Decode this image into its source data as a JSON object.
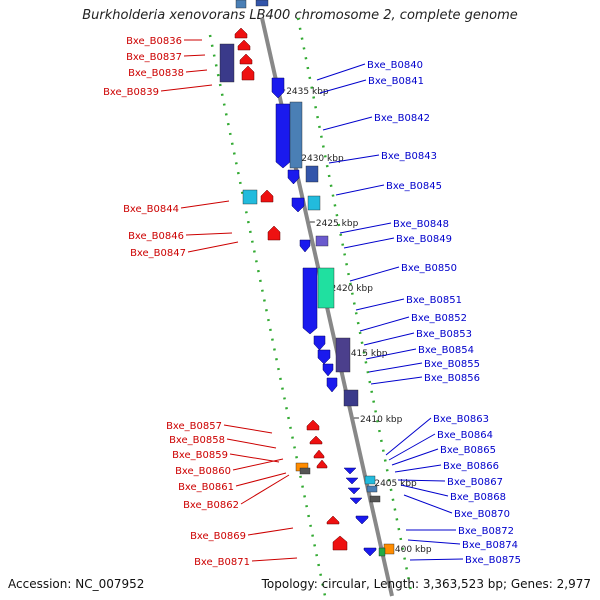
{
  "title": "Burkholderia xenovorans LB400 chromosome 2, complete genome",
  "accession": "Accession: NC_007952",
  "summary": "Topology: circular, Length: 3,363,523 bp; Genes: 2,977",
  "colors": {
    "forward_label": "#0000cc",
    "reverse_label": "#cc0000",
    "backbone": "#888888",
    "dotted_track": "#33aa33"
  },
  "scale_labels": [
    "2435 kbp",
    "2430 kbp",
    "2425 kbp",
    "2420 kbp",
    "2415 kbp",
    "2410 kbp",
    "2405 kbp",
    "2400 kbp"
  ],
  "forward_genes": [
    "Bxe_B0840",
    "Bxe_B0841",
    "Bxe_B0842",
    "Bxe_B0843",
    "Bxe_B0845",
    "Bxe_B0848",
    "Bxe_B0849",
    "Bxe_B0850",
    "Bxe_B0851",
    "Bxe_B0852",
    "Bxe_B0853",
    "Bxe_B0854",
    "Bxe_B0855",
    "Bxe_B0856",
    "Bxe_B0863",
    "Bxe_B0864",
    "Bxe_B0865",
    "Bxe_B0866",
    "Bxe_B0867",
    "Bxe_B0868",
    "Bxe_B0870",
    "Bxe_B0872",
    "Bxe_B0874",
    "Bxe_B0875"
  ],
  "reverse_genes": [
    "Bxe_B0836",
    "Bxe_B0837",
    "Bxe_B0838",
    "Bxe_B0839",
    "Bxe_B0844",
    "Bxe_B0846",
    "Bxe_B0847",
    "Bxe_B0857",
    "Bxe_B0858",
    "Bxe_B0859",
    "Bxe_B0860",
    "Bxe_B0861",
    "Bxe_B0862",
    "Bxe_B0869",
    "Bxe_B0871"
  ]
}
